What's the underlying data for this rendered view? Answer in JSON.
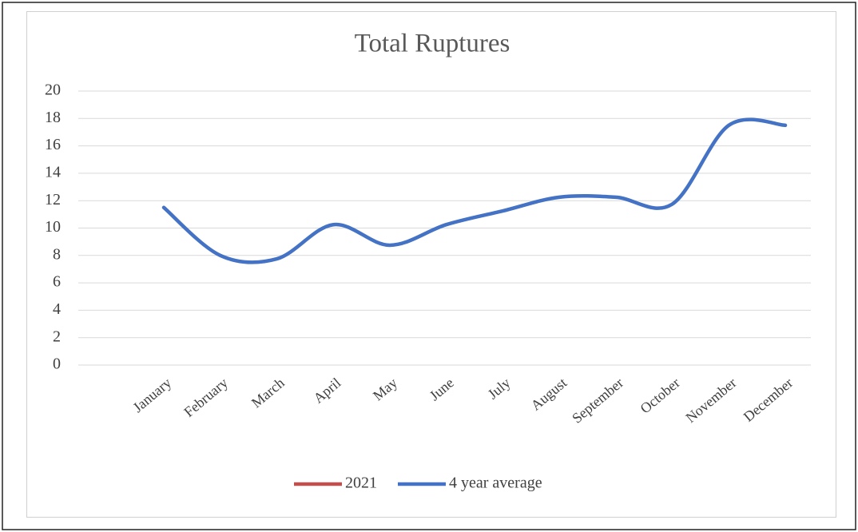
{
  "chart_data": {
    "type": "line",
    "title": "Total Ruptures",
    "categories": [
      "January",
      "February",
      "March",
      "April",
      "May",
      "June",
      "July",
      "August",
      "September",
      "October",
      "November",
      "December"
    ],
    "series": [
      {
        "name": "2021",
        "color": "#c0504d",
        "values": [
          null,
          null,
          null,
          null,
          null,
          null,
          null,
          null,
          null,
          null,
          null,
          null
        ]
      },
      {
        "name": "4 year average",
        "color": "#4472c4",
        "values": [
          11.5,
          8,
          7.75,
          10.25,
          8.75,
          10.25,
          11.25,
          12.25,
          12.25,
          11.75,
          17.5,
          17.5
        ]
      }
    ],
    "ylim": [
      0,
      20
    ],
    "yticks": [
      0,
      2,
      4,
      6,
      8,
      10,
      12,
      14,
      16,
      18,
      20
    ],
    "grid": true,
    "smooth": true,
    "legend": "bottom"
  }
}
